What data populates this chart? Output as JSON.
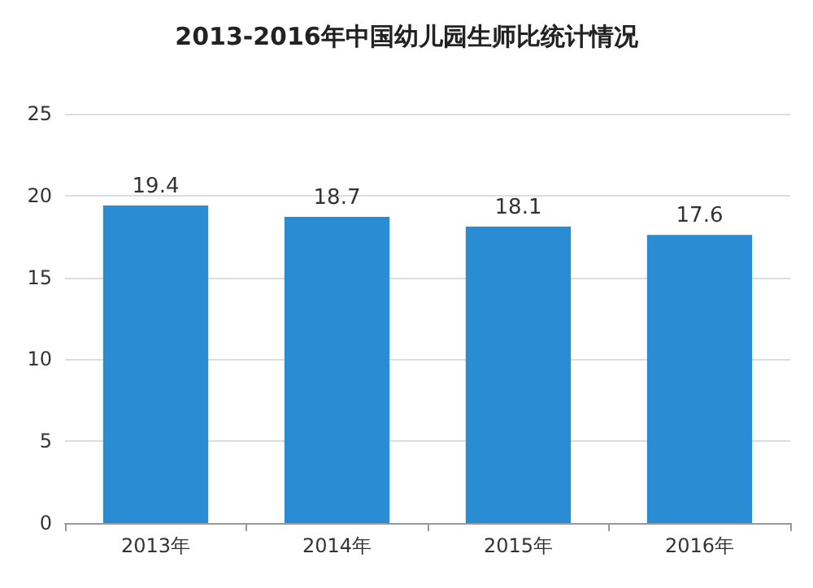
{
  "chart_data": {
    "type": "bar",
    "title": "2013-2016年中国幼儿园生师比统计情况",
    "categories": [
      "2013年",
      "2014年",
      "2015年",
      "2016年"
    ],
    "values": [
      19.4,
      18.7,
      18.1,
      17.6
    ],
    "color": "#2a8dd4",
    "ylim": [
      0,
      25
    ],
    "yticks": [
      0,
      5,
      10,
      15,
      20,
      25
    ],
    "grid": "y",
    "data_labels": true
  }
}
